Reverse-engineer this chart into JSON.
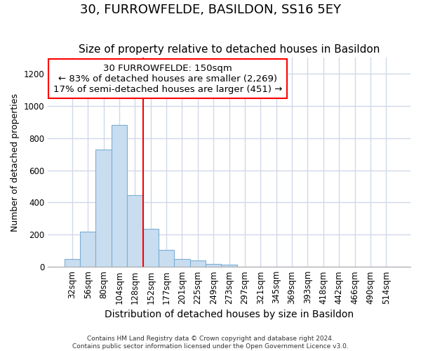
{
  "title": "30, FURROWFELDE, BASILDON, SS16 5EY",
  "subtitle": "Size of property relative to detached houses in Basildon",
  "xlabel": "Distribution of detached houses by size in Basildon",
  "ylabel": "Number of detached properties",
  "categories": [
    "32sqm",
    "56sqm",
    "80sqm",
    "104sqm",
    "128sqm",
    "152sqm",
    "177sqm",
    "201sqm",
    "225sqm",
    "249sqm",
    "273sqm",
    "297sqm",
    "321sqm",
    "345sqm",
    "369sqm",
    "393sqm",
    "418sqm",
    "442sqm",
    "466sqm",
    "490sqm",
    "514sqm"
  ],
  "values": [
    50,
    220,
    730,
    880,
    445,
    235,
    105,
    50,
    40,
    20,
    15,
    0,
    0,
    0,
    0,
    0,
    0,
    0,
    0,
    0,
    0
  ],
  "bar_color": "#c9ddf0",
  "bar_edge_color": "#7bafd4",
  "background_color": "#ffffff",
  "plot_bg_color": "#ffffff",
  "grid_color": "#d0d8e8",
  "red_line_index": 5,
  "annotation_text": "30 FURROWFELDE: 150sqm\n← 83% of detached houses are smaller (2,269)\n17% of semi-detached houses are larger (451) →",
  "ylim": [
    0,
    1300
  ],
  "yticks": [
    0,
    200,
    400,
    600,
    800,
    1000,
    1200
  ],
  "footnote": "Contains HM Land Registry data © Crown copyright and database right 2024.\nContains public sector information licensed under the Open Government Licence v3.0.",
  "title_fontsize": 13,
  "subtitle_fontsize": 11,
  "xlabel_fontsize": 10,
  "ylabel_fontsize": 9,
  "tick_fontsize": 8.5,
  "annot_fontsize": 9.5
}
